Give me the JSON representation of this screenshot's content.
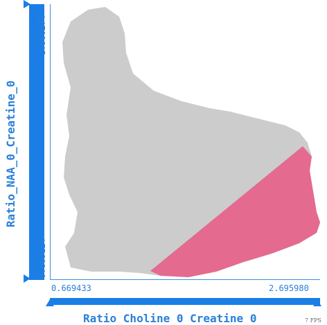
{
  "axes": {
    "y": {
      "label": "Ratio_NAA_0_Creatine_0",
      "min_label": "0.669124",
      "max_label": "1.960274"
    },
    "x": {
      "label": "Ratio Choline 0 Creatine 0",
      "min_label": "0.669433",
      "max_label": "2.695980"
    }
  },
  "status": {
    "fps": "7 FPS"
  },
  "colors": {
    "accent": "#1a7ee6",
    "points": "#cccccc",
    "selection": "#e46a90"
  }
}
